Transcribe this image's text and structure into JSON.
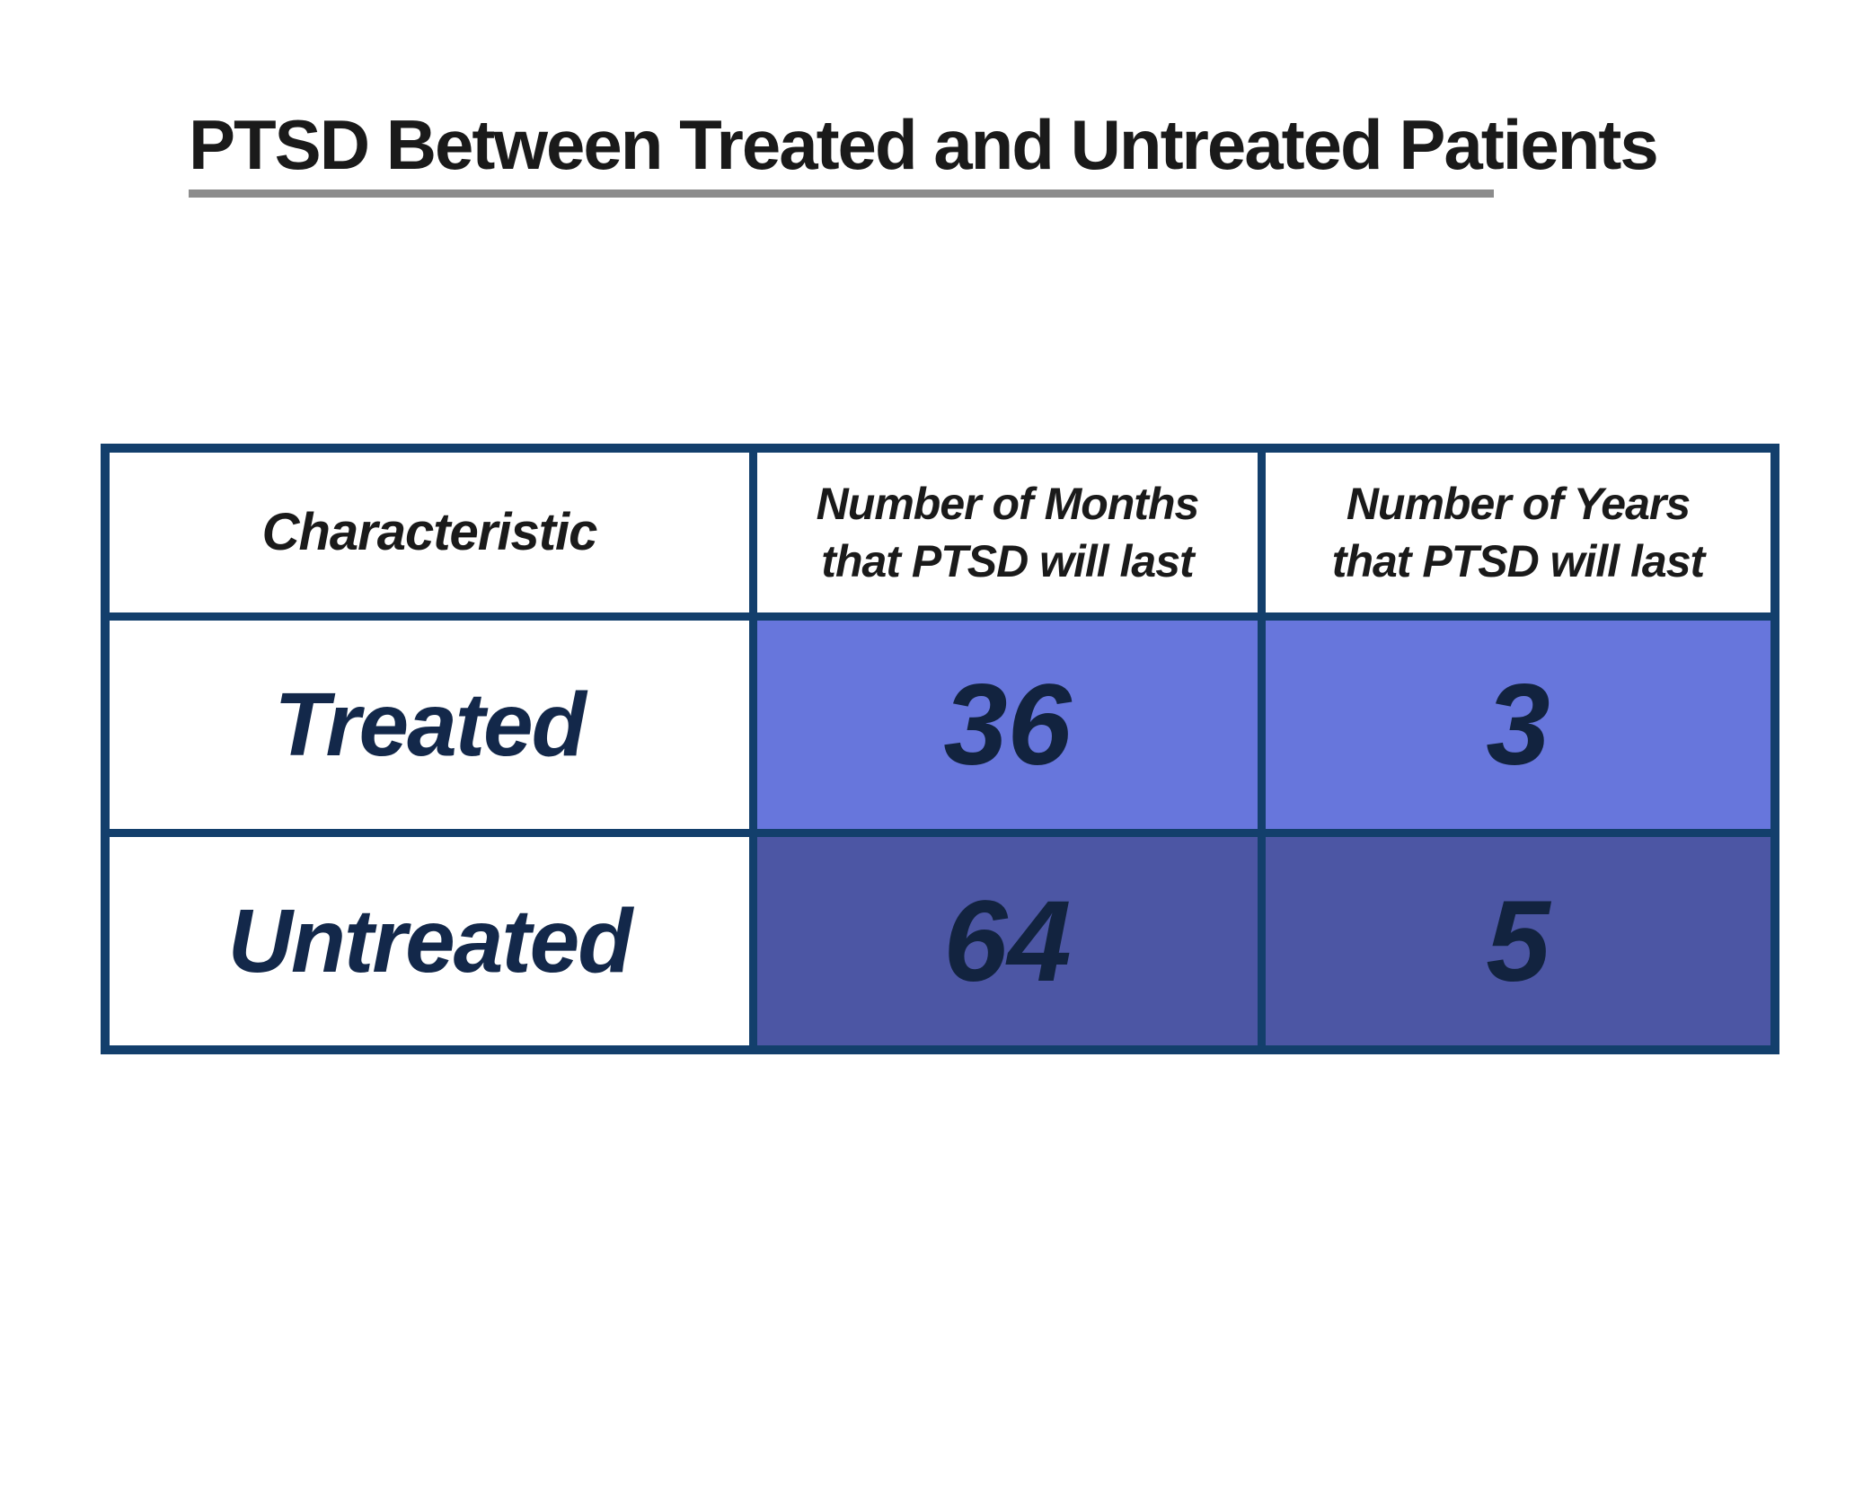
{
  "title": "PTSD Between Treated and Untreated Patients",
  "table": {
    "headers": [
      {
        "lines": [
          "Characteristic"
        ]
      },
      {
        "lines": [
          "Number of Months",
          "that PTSD will last"
        ]
      },
      {
        "lines": [
          "Number of Years",
          "that PTSD will last"
        ]
      }
    ],
    "rows": [
      {
        "label": "Treated",
        "months": "36",
        "years": "3"
      },
      {
        "label": "Untreated",
        "months": "64",
        "years": "5"
      }
    ]
  },
  "colors": {
    "border_navy": "#133f6c",
    "treated_cell_fill": "#6776dc",
    "untreated_cell_fill": "#4c56a4",
    "data_text_navy": "#12233f",
    "header_text_black": "#1a1a1a",
    "title_underline_gray": "#8c8c8c"
  },
  "chart_data": {
    "type": "table",
    "title": "PTSD Between Treated and Untreated Patients",
    "columns": [
      "Characteristic",
      "Number of Months that PTSD will last",
      "Number of Years that PTSD will last"
    ],
    "rows": [
      [
        "Treated",
        36,
        3
      ],
      [
        "Untreated",
        64,
        5
      ]
    ]
  }
}
